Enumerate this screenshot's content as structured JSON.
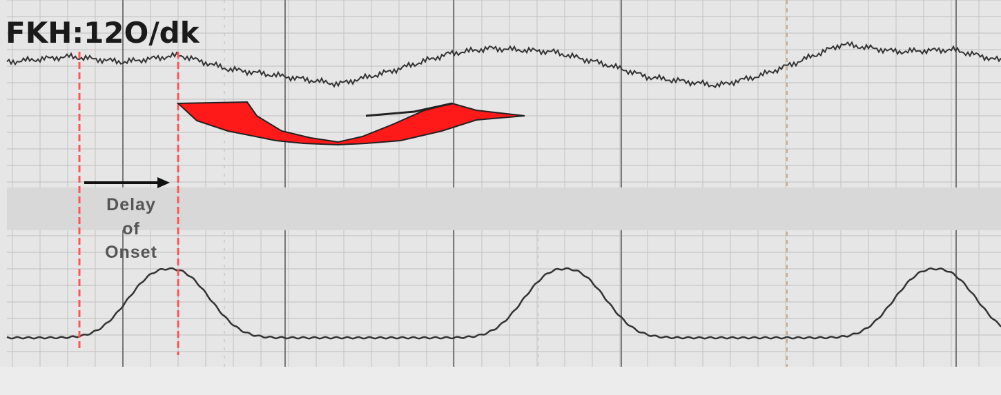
{
  "header": {
    "title": "FKH:12O/dk"
  },
  "annotation": {
    "lines": [
      "Delay",
      "of",
      "Onset"
    ]
  }
}
